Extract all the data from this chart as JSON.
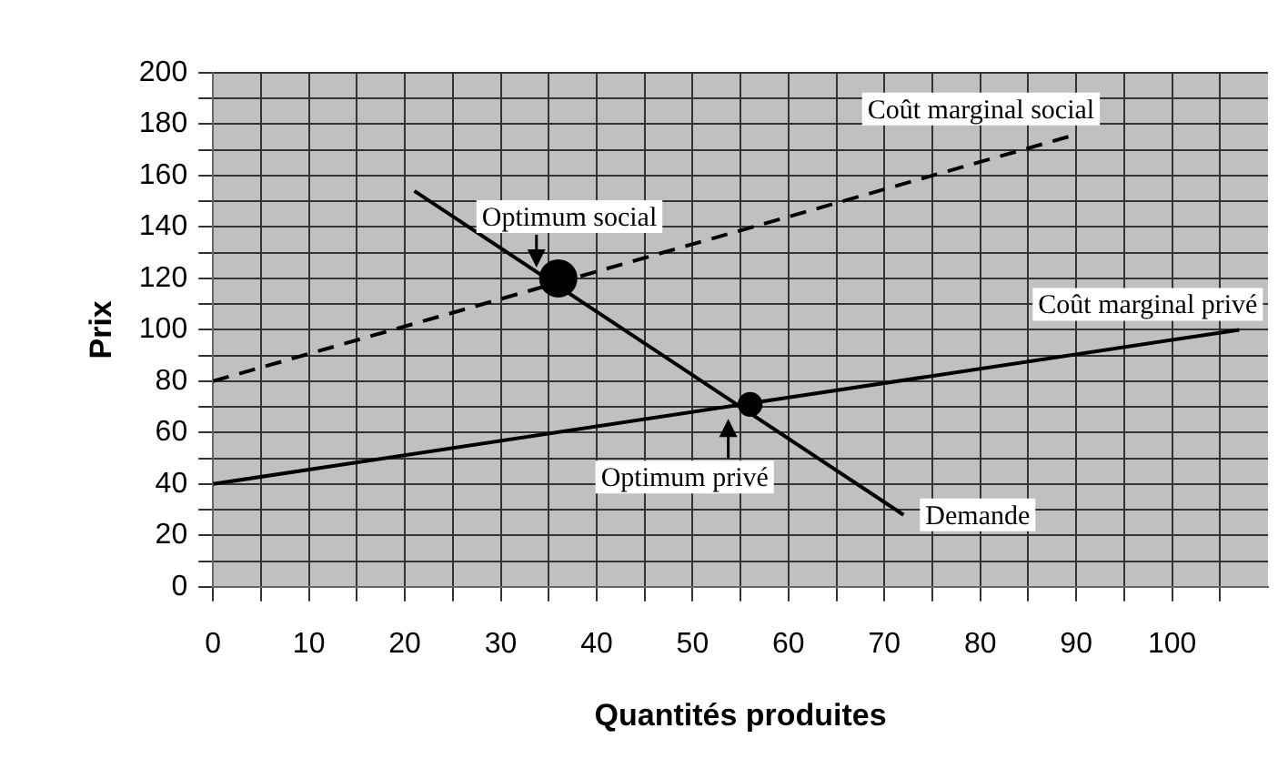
{
  "chart_data": {
    "type": "line",
    "xlabel": "Quantités produites",
    "ylabel": "Prix",
    "xlim": [
      0,
      110
    ],
    "xticks": [
      0,
      {
        "value": 5,
        "label": null
      },
      10,
      {
        "value": 15,
        "label": null
      },
      20,
      {
        "value": 25,
        "label": null
      },
      30,
      {
        "value": 35,
        "label": null
      },
      40,
      {
        "value": 45,
        "label": null
      },
      50,
      {
        "value": 55,
        "label": null
      },
      60,
      {
        "value": 65,
        "label": null
      },
      70,
      {
        "value": 75,
        "label": null
      },
      80,
      {
        "value": 85,
        "label": null
      },
      90,
      {
        "value": 95,
        "label": null
      },
      100,
      {
        "value": 105,
        "label": null
      }
    ],
    "ylim": [
      0,
      200
    ],
    "yticks": [
      0,
      {
        "value": 10,
        "label": null
      },
      20,
      {
        "value": 30,
        "label": null
      },
      40,
      {
        "value": 50,
        "label": null
      },
      60,
      {
        "value": 70,
        "label": null
      },
      80,
      {
        "value": 90,
        "label": null
      },
      100,
      {
        "value": 110,
        "label": null
      },
      120,
      {
        "value": 130,
        "label": null
      },
      140,
      {
        "value": 150,
        "label": null
      },
      160,
      {
        "value": 170,
        "label": null
      },
      180,
      {
        "value": 190,
        "label": null
      },
      200
    ],
    "grid": true,
    "legend": false,
    "marker": "none",
    "series": [
      {
        "name": "Coût marginal social",
        "color": "#000000",
        "x": [
          0,
          90
        ],
        "values": [
          80,
          176
        ],
        "line_style": "dashed"
      },
      {
        "name": "Coût marginal privé",
        "color": "#000000",
        "x": [
          0,
          107
        ],
        "values": [
          40,
          100
        ],
        "line_style": "solid"
      },
      {
        "name": "Demande",
        "color": "#000000",
        "x": [
          21,
          72
        ],
        "values": [
          154,
          28
        ],
        "line_style": "solid"
      },
      {
        "type": "bubble",
        "color": "#000000",
        "x": [
          36,
          56
        ],
        "values": [
          120,
          71
        ],
        "sizes": [
          1,
          0.4
        ],
        "marker": "circle"
      }
    ],
    "annotations": [
      {
        "text": "Optimum social",
        "x": 36,
        "y": 120
      },
      {
        "text": "Optimum privé",
        "x": 56,
        "y": 71
      }
    ]
  }
}
